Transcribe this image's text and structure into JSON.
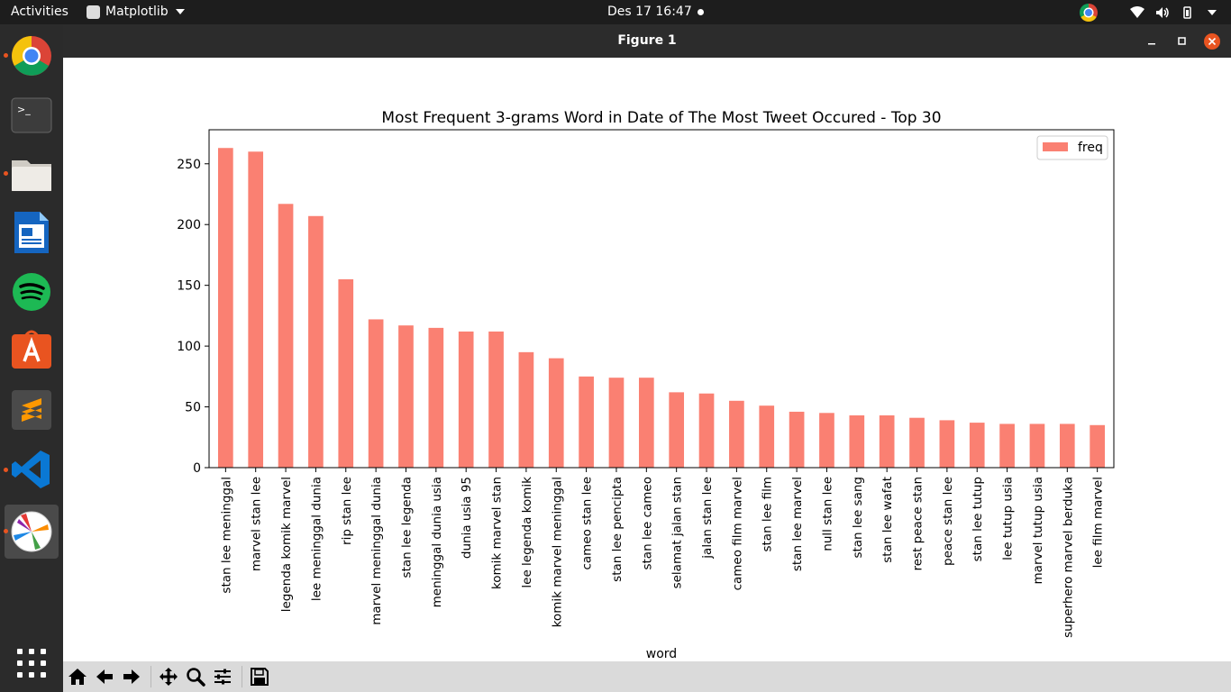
{
  "topbar": {
    "activities": "Activities",
    "app_name": "Matplotlib",
    "clock": "Des 17  16:47"
  },
  "dock": {
    "items": [
      "chrome-icon",
      "terminal-icon",
      "files-icon",
      "writer-icon",
      "spotify-icon",
      "software-icon",
      "sublime-icon",
      "vscode-icon",
      "matplotlib-icon"
    ],
    "apps_grid": "show-applications-icon"
  },
  "window": {
    "title": "Figure 1"
  },
  "toolbar": {
    "buttons": [
      "home-icon",
      "back-icon",
      "forward-icon",
      "pan-icon",
      "zoom-icon",
      "subplots-icon",
      "save-icon"
    ]
  },
  "colors": {
    "bar": "#fa8072",
    "topbar": "#1d1d1d",
    "dock": "#2b2b2b",
    "titlebar": "#2c2c2c",
    "close_button": "#e95420"
  },
  "chart_data": {
    "type": "bar",
    "title": "Most Frequent 3-grams Word in Date of The Most Tweet Occured - Top 30",
    "xlabel": "word",
    "ylabel": "",
    "ylim": [
      0,
      278
    ],
    "yticks": [
      0,
      50,
      100,
      150,
      200,
      250
    ],
    "legend": "top-right",
    "grid": false,
    "categories": [
      "stan lee meninggal",
      "marvel stan lee",
      "legenda komik marvel",
      "lee meninggal dunia",
      "rip stan lee",
      "marvel meninggal dunia",
      "stan lee legenda",
      "meninggal dunia usia",
      "dunia usia 95",
      "komik marvel stan",
      "lee legenda komik",
      "komik marvel meninggal",
      "cameo stan lee",
      "stan lee pencipta",
      "stan lee cameo",
      "selamat jalan stan",
      "jalan stan lee",
      "cameo film marvel",
      "stan lee film",
      "stan lee marvel",
      "null stan lee",
      "stan lee sang",
      "stan lee wafat",
      "rest peace stan",
      "peace stan lee",
      "stan lee tutup",
      "lee tutup usia",
      "marvel tutup usia",
      "superhero marvel berduka",
      "lee film marvel"
    ],
    "series": [
      {
        "name": "freq",
        "values": [
          263,
          260,
          217,
          207,
          155,
          122,
          117,
          115,
          112,
          112,
          95,
          90,
          75,
          74,
          74,
          62,
          61,
          55,
          51,
          46,
          45,
          43,
          43,
          41,
          39,
          37,
          36,
          36,
          36,
          35
        ]
      }
    ]
  }
}
